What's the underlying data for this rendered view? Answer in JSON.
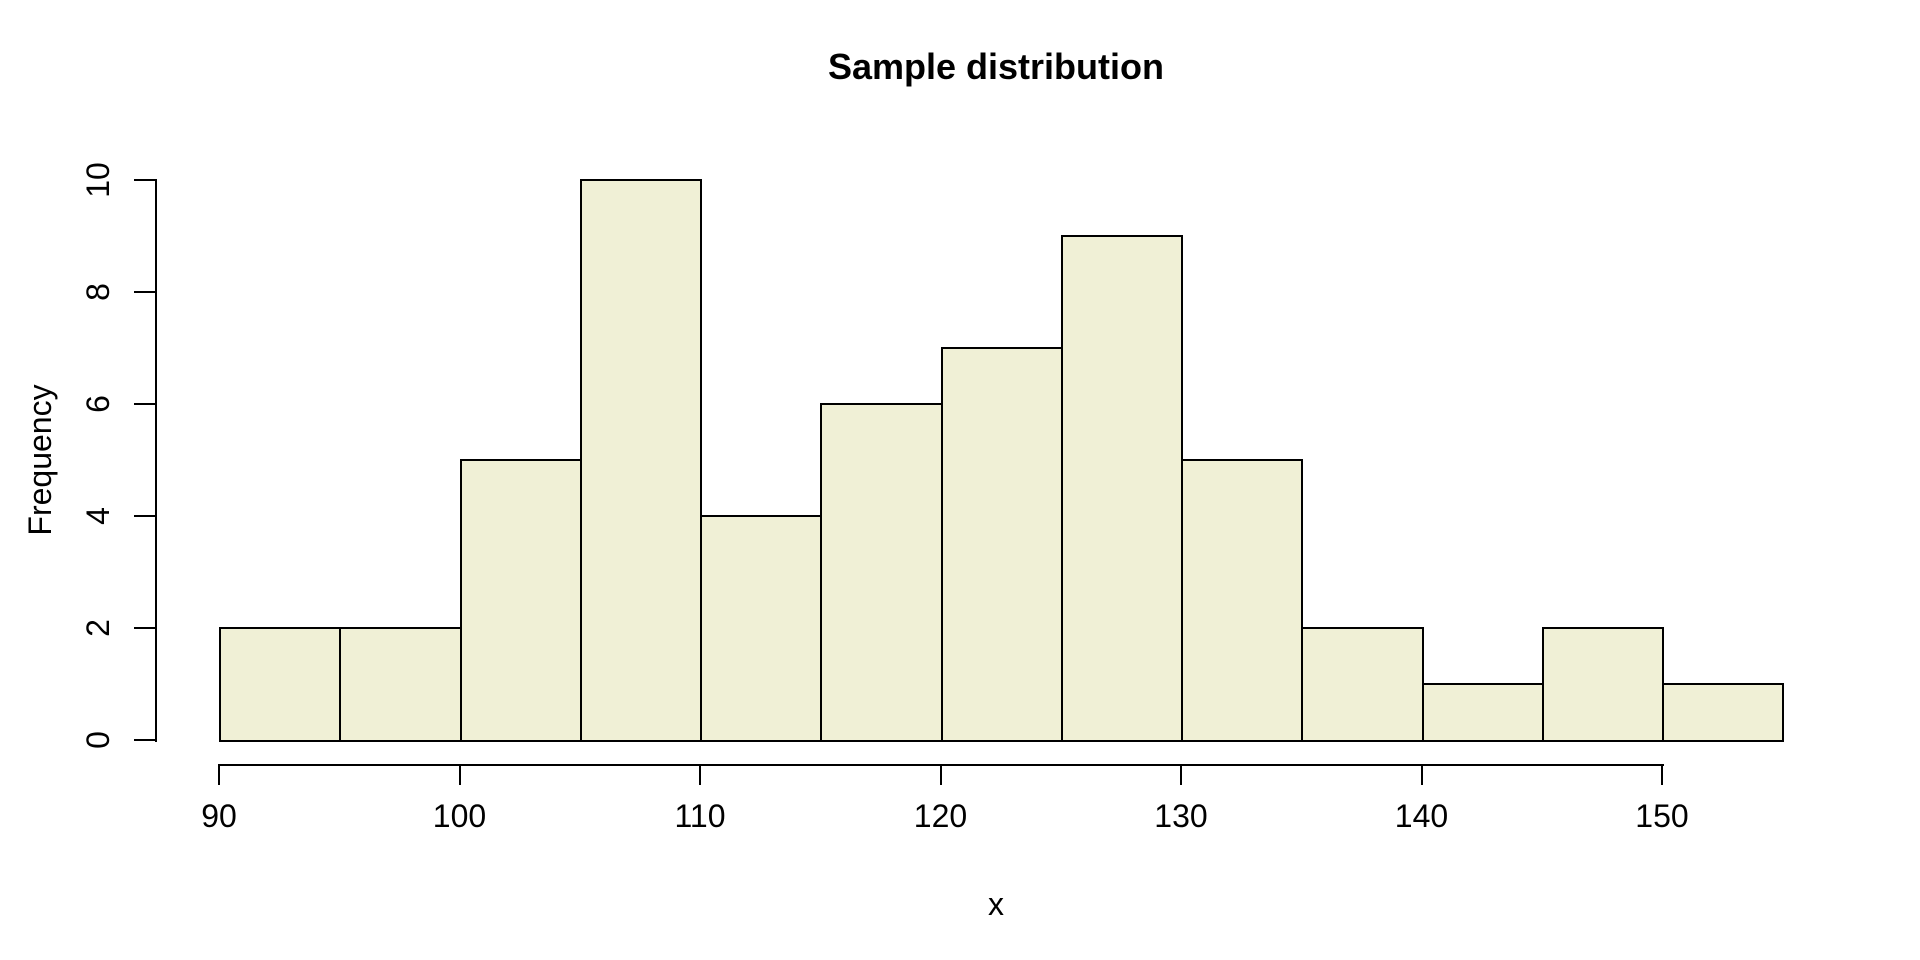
{
  "chart_data": {
    "type": "bar",
    "subtype": "histogram",
    "title": "Sample distribution",
    "xlabel": "x",
    "ylabel": "Frequency",
    "bin_edges": [
      90,
      95,
      100,
      105,
      110,
      115,
      120,
      125,
      130,
      135,
      140,
      145,
      150,
      155
    ],
    "counts": [
      2,
      2,
      5,
      10,
      4,
      6,
      7,
      9,
      5,
      2,
      1,
      2,
      1
    ],
    "x_ticks": [
      90,
      100,
      110,
      120,
      130,
      140,
      150
    ],
    "y_ticks": [
      0,
      2,
      4,
      6,
      8,
      10
    ],
    "xlim": [
      90,
      155
    ],
    "ylim": [
      0,
      10
    ],
    "grid": false,
    "legend": null,
    "colors": {
      "bar_fill": "#F0F0D6",
      "bar_border": "#000000",
      "axis": "#000000",
      "text": "#000000",
      "background": "#ffffff"
    }
  }
}
